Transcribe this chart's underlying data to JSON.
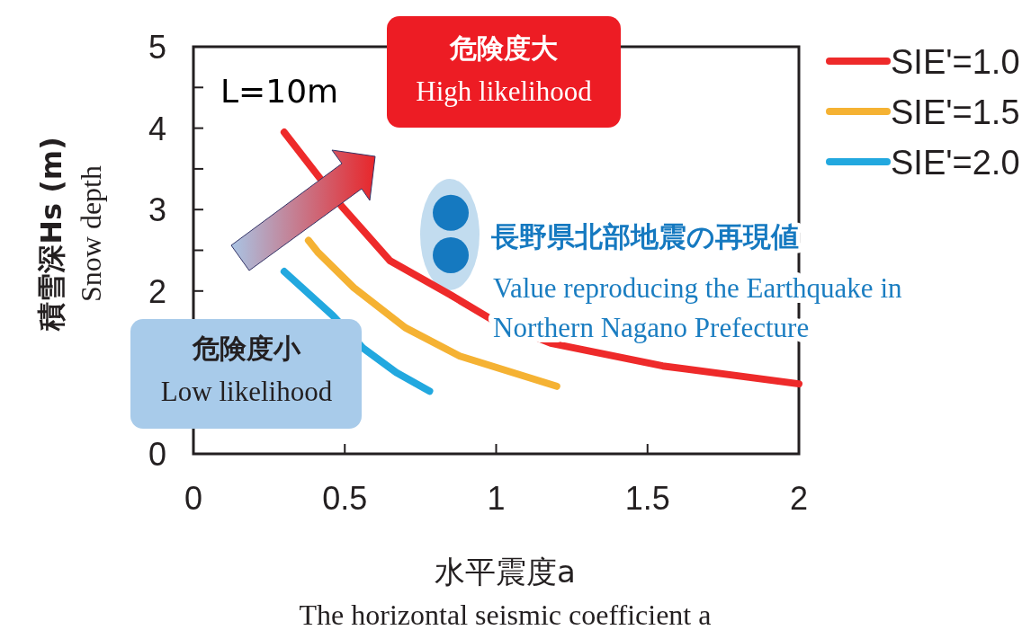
{
  "chart_data": {
    "type": "line",
    "xlabel": "水平震度a\nThe horizontal seismic coefficient a",
    "ylabel": "積雪深Hs (m)\nSnow depth",
    "xlim": [
      0,
      2
    ],
    "ylim": [
      0,
      5
    ],
    "xticks": [
      0,
      0.5,
      1,
      1.5,
      2
    ],
    "yticks": [
      0,
      {
        "value": 0.5,
        "label": null
      },
      {
        "value": 1,
        "label": null
      },
      {
        "value": 1.5,
        "label": null
      },
      2,
      {
        "value": 2.5,
        "label": null
      },
      3,
      {
        "value": 3.5,
        "label": null
      },
      4,
      {
        "value": 4.5,
        "label": null
      },
      5
    ],
    "grid": false,
    "legend": "top right",
    "line_style": "solid",
    "series": [
      {
        "name": "SIE'=1.0",
        "color": "#ee2a2a",
        "x": [
          0.3,
          0.49,
          0.65,
          0.85,
          0.99,
          1.18,
          1.55,
          2.0
        ],
        "values": [
          3.95,
          3.04,
          2.37,
          1.95,
          1.64,
          1.36,
          1.08,
          0.86
        ]
      },
      {
        "name": "SIE'=1.5",
        "color": "#f5b233",
        "x": [
          0.38,
          0.41,
          0.53,
          0.7,
          0.88,
          1.2
        ],
        "values": [
          2.62,
          2.48,
          2.04,
          1.55,
          1.2,
          0.83
        ]
      },
      {
        "name": "SIE'=2.0",
        "color": "#22a8df",
        "x": [
          0.3,
          0.46,
          0.56,
          0.67,
          0.78
        ],
        "values": [
          2.24,
          1.7,
          1.3,
          1.0,
          0.77
        ]
      },
      {
        "name": "長野県北部地震の再現値",
        "type": "scatter",
        "marker": "circle",
        "color": "#1579c0",
        "x": [
          0.85,
          0.85
        ],
        "values": [
          2.96,
          2.44
        ]
      }
    ],
    "annotations": [
      "L=10m",
      "危険度大\nHigh likelihood",
      "危険度小\nLow likelihood",
      "Value reproducing the Earthquake in\nNorthern Nagano Prefecture"
    ]
  }
}
